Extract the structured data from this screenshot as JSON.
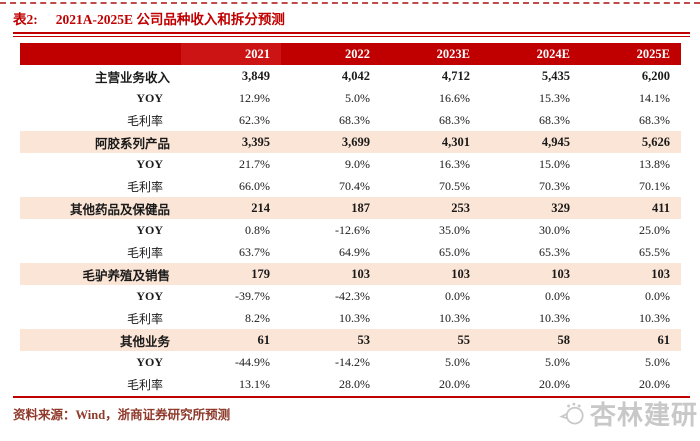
{
  "title": {
    "label": "表2:",
    "text": "2021A-2025E 公司品种收入和拆分预测"
  },
  "table": {
    "header": [
      "",
      "2021",
      "2022",
      "2023E",
      "2024E",
      "2025E"
    ],
    "rows": [
      {
        "label": "主营业务收入",
        "type": "category",
        "values": [
          "3,849",
          "4,042",
          "4,712",
          "5,435",
          "6,200"
        ]
      },
      {
        "label": "YOY",
        "type": "sub",
        "values": [
          "12.9%",
          "5.0%",
          "16.6%",
          "15.3%",
          "14.1%"
        ]
      },
      {
        "label": "毛利率",
        "type": "sub",
        "values": [
          "62.3%",
          "68.3%",
          "68.3%",
          "68.3%",
          "68.3%"
        ]
      },
      {
        "label": "阿胶系列产品",
        "type": "category-highlight",
        "values": [
          "3,395",
          "3,699",
          "4,301",
          "4,945",
          "5,626"
        ]
      },
      {
        "label": "YOY",
        "type": "sub",
        "values": [
          "21.7%",
          "9.0%",
          "16.3%",
          "15.0%",
          "13.8%"
        ]
      },
      {
        "label": "毛利率",
        "type": "sub",
        "values": [
          "66.0%",
          "70.4%",
          "70.5%",
          "70.3%",
          "70.1%"
        ]
      },
      {
        "label": "其他药品及保健品",
        "type": "category-highlight",
        "values": [
          "214",
          "187",
          "253",
          "329",
          "411"
        ]
      },
      {
        "label": "YOY",
        "type": "sub",
        "values": [
          "0.8%",
          "-12.6%",
          "35.0%",
          "30.0%",
          "25.0%"
        ]
      },
      {
        "label": "毛利率",
        "type": "sub",
        "values": [
          "63.7%",
          "64.9%",
          "65.0%",
          "65.3%",
          "65.5%"
        ]
      },
      {
        "label": "毛驴养殖及销售",
        "type": "category-highlight",
        "values": [
          "179",
          "103",
          "103",
          "103",
          "103"
        ]
      },
      {
        "label": "YOY",
        "type": "sub",
        "values": [
          "-39.7%",
          "-42.3%",
          "0.0%",
          "0.0%",
          "0.0%"
        ]
      },
      {
        "label": "毛利率",
        "type": "sub",
        "values": [
          "8.2%",
          "10.3%",
          "10.3%",
          "10.3%",
          "10.3%"
        ]
      },
      {
        "label": "其他业务",
        "type": "category-highlight",
        "values": [
          "61",
          "53",
          "55",
          "58",
          "61"
        ]
      },
      {
        "label": "YOY",
        "type": "sub",
        "values": [
          "-44.9%",
          "-14.2%",
          "5.0%",
          "5.0%",
          "5.0%"
        ]
      },
      {
        "label": "毛利率",
        "type": "sub",
        "values": [
          "13.1%",
          "28.0%",
          "20.0%",
          "20.0%",
          "20.0%"
        ]
      }
    ]
  },
  "footer": {
    "source": "资料来源：Wind，浙商证券研究所预测"
  },
  "watermark": {
    "text": "杏林建研"
  },
  "colors": {
    "accent_red": "#c00000",
    "highlight_row": "#fbe5d6",
    "source_text": "#8f3a2b",
    "watermark_gray": "#c8c8c8"
  }
}
